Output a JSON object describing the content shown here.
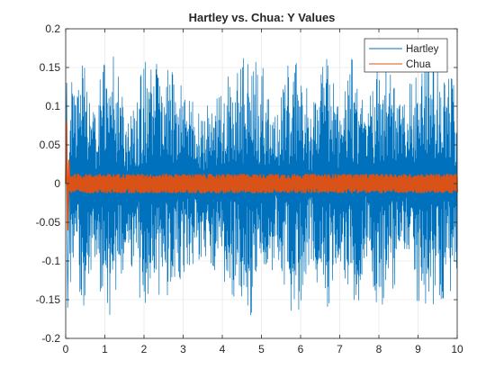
{
  "chart_data": {
    "type": "line",
    "title": "Hartley vs. Chua: Y Values",
    "xlabel": "",
    "ylabel": "",
    "xlim": [
      0,
      10
    ],
    "ylim": [
      -0.2,
      0.2
    ],
    "x_ticks": [
      0,
      1,
      2,
      3,
      4,
      5,
      6,
      7,
      8,
      9,
      10
    ],
    "x_tick_labels": [
      "0",
      "1",
      "2",
      "3",
      "4",
      "5",
      "6",
      "7",
      "8",
      "9",
      "10"
    ],
    "y_ticks": [
      0.2,
      0.15,
      0.1,
      0.05,
      0,
      -0.05,
      -0.1,
      -0.15,
      -0.2
    ],
    "y_tick_labels": [
      "0.2",
      "0.15",
      "0.1",
      "0.05",
      "0",
      "-0.05",
      "-0.1",
      "-0.15",
      "-0.2"
    ],
    "grid": true,
    "legend_position": "top-right",
    "series": [
      {
        "name": "Hartley",
        "color": "#0072BD",
        "envelope_max": 0.17,
        "envelope_min": -0.17,
        "initial_transient": {
          "x": 0.05,
          "y_max": 0.13,
          "y_min": -0.16
        }
      },
      {
        "name": "Chua",
        "color": "#D95319",
        "envelope_max": 0.012,
        "envelope_min": -0.012,
        "initial_transient": {
          "x": 0.05,
          "y_max": 0.08,
          "y_min": -0.06
        }
      }
    ]
  }
}
